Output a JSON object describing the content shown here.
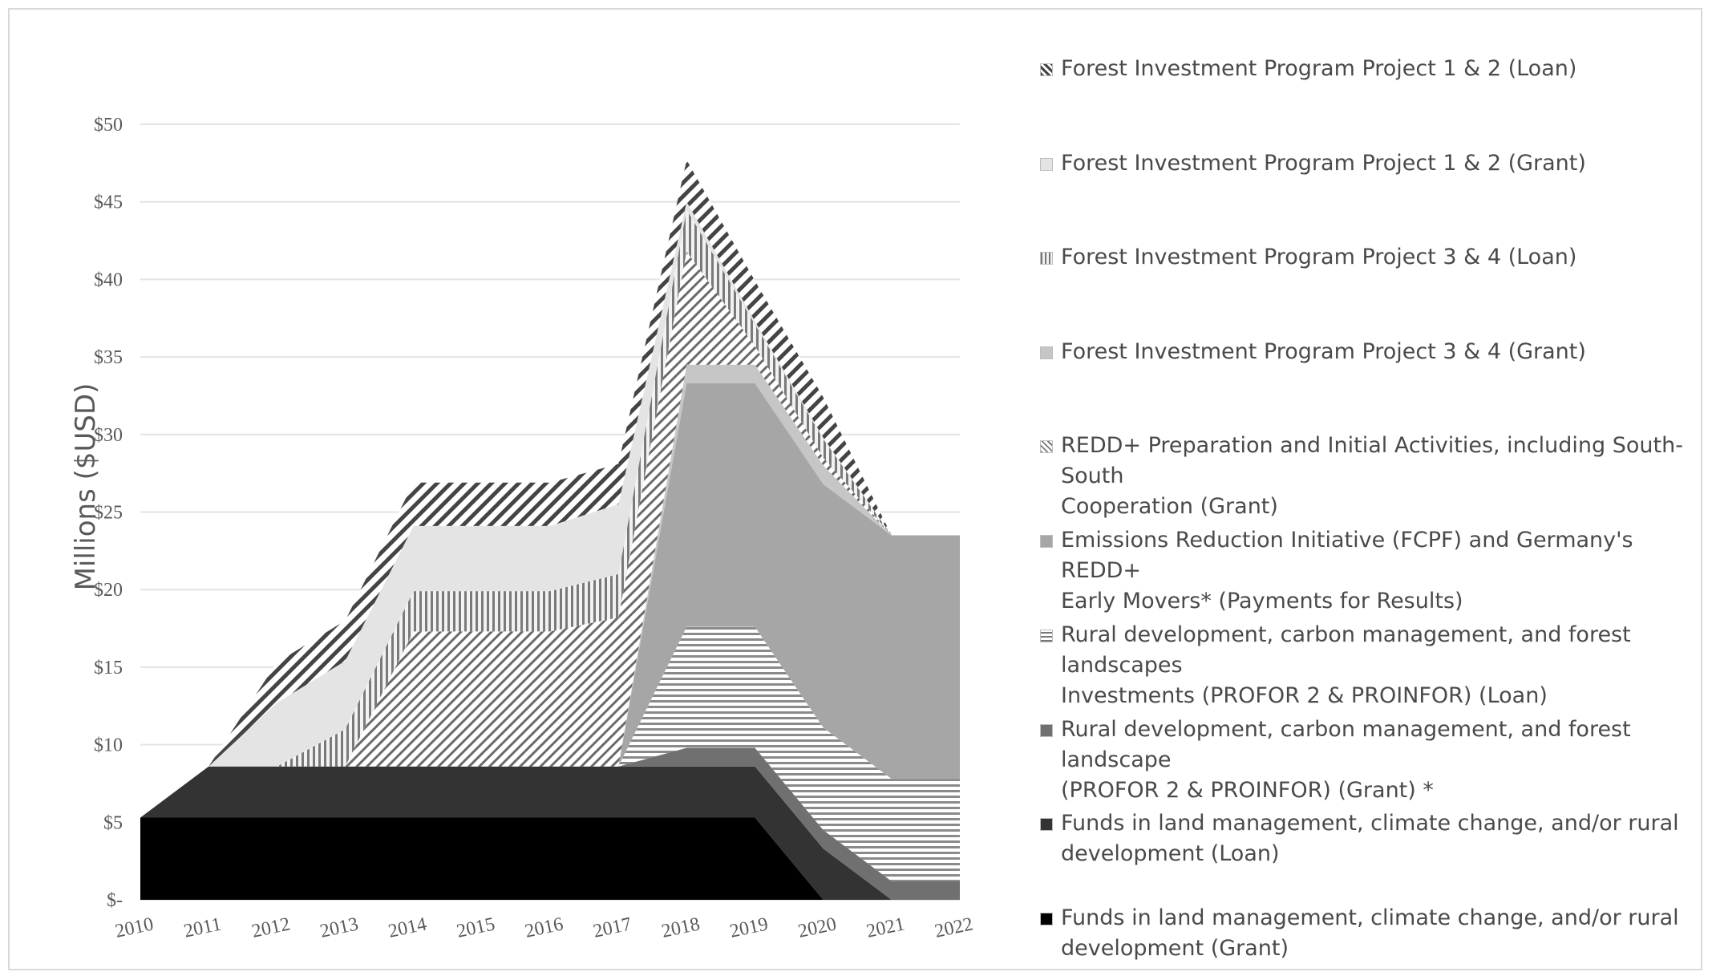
{
  "chart_data": {
    "type": "area",
    "stacked": true,
    "ylabel": "Millions ($USD)",
    "xlabel": "",
    "ylim": [
      0,
      50
    ],
    "yticks": [
      "$-",
      "$5",
      "$10",
      "$15",
      "$20",
      "$25",
      "$30",
      "$35",
      "$40",
      "$45",
      "$50"
    ],
    "ytick_values": [
      0,
      5,
      10,
      15,
      20,
      25,
      30,
      35,
      40,
      45,
      50
    ],
    "categories": [
      "2010",
      "2011",
      "2012",
      "2013",
      "2014",
      "2015",
      "2016",
      "2017",
      "2018",
      "2019",
      "2020",
      "2021",
      "2022"
    ],
    "grid": true,
    "legend_position": "right",
    "series": [
      {
        "name": "Funds in land management, climate change, and/or rural development (Grant)",
        "pattern": "solid-black",
        "color": "#000000",
        "values": [
          5.3,
          5.3,
          5.3,
          5.3,
          5.3,
          5.3,
          5.3,
          5.3,
          5.3,
          5.3,
          0,
          0,
          0
        ]
      },
      {
        "name": "Funds in land management, climate change, and/or rural development (Loan)",
        "pattern": "solid-dark",
        "color": "#3a3a3a",
        "values": [
          0,
          3.3,
          3.3,
          3.3,
          3.3,
          3.3,
          3.3,
          3.3,
          3.3,
          3.3,
          3.3,
          0,
          0
        ]
      },
      {
        "name": "Rural development, carbon management, and forest landscape (PROFOR 2 & PROINFOR) (Grant) *",
        "pattern": "solid-mid",
        "color": "#6e6e6e",
        "values": [
          0,
          0,
          0,
          0,
          0,
          0,
          0,
          0,
          1.2,
          1.2,
          1.2,
          1.2,
          1.2
        ]
      },
      {
        "name": "Rural development, carbon management, and forest landscapes Investments (PROFOR 2 & PROINFOR) (Loan)",
        "pattern": "horizontal-lines",
        "color": "#8a8a8a",
        "values": [
          0,
          0,
          0,
          0,
          0,
          0,
          0,
          0,
          7.8,
          7.8,
          6.6,
          6.6,
          6.6
        ]
      },
      {
        "name": "Emissions Reduction Initiative (FCPF) and Germany's REDD+ Early Movers* (Payments for Results)",
        "pattern": "solid-gray",
        "color": "#a6a6a6",
        "values": [
          0,
          0,
          0,
          0,
          0,
          0,
          0,
          0,
          15.7,
          15.7,
          15.7,
          15.7,
          15.7
        ]
      },
      {
        "name": "Forest Investment Program Project 3 & 4 (Grant)",
        "pattern": "solid-light",
        "color": "#c4c4c4",
        "values": [
          0,
          0,
          0,
          0,
          0,
          0,
          0,
          0,
          1.2,
          1.2,
          1.2,
          0,
          0
        ]
      },
      {
        "name": "REDD+ Preparation and Initial Activities, including South-South Cooperation (Grant)",
        "pattern": "diagonal-thin",
        "color": "#777777",
        "values": [
          0,
          0,
          0,
          0,
          8.7,
          8.7,
          8.7,
          9.6,
          7.3,
          1.2,
          0.5,
          0,
          0
        ]
      },
      {
        "name": "Forest Investment Program Project 3 & 4 (Loan)",
        "pattern": "vertical-lines",
        "color": "#909090",
        "values": [
          0,
          0,
          0,
          2.4,
          2.6,
          2.6,
          2.6,
          2.8,
          2.7,
          1.4,
          1.2,
          0,
          0
        ]
      },
      {
        "name": "Forest Investment Program Project 1 & 2 (Grant)",
        "pattern": "solid-verylight",
        "color": "#e3e3e3",
        "values": [
          0,
          0,
          4.1,
          4.4,
          4.2,
          4.2,
          4.2,
          4.5,
          0.5,
          0.2,
          0.1,
          0,
          0
        ]
      },
      {
        "name": "Forest Investment Program Project 1 & 2 (Loan)",
        "pattern": "diagonal-thick",
        "color": "#555555",
        "values": [
          0,
          0,
          2.6,
          2.6,
          2.8,
          2.8,
          2.8,
          2.6,
          2.7,
          2.6,
          2.6,
          0,
          0
        ]
      }
    ]
  },
  "legend": [
    {
      "label": "Forest Investment Program Project 1 & 2 (Loan)",
      "swatch": "diagonal-thick"
    },
    {
      "label": "Forest Investment Program Project 1 & 2 (Grant)",
      "swatch": "solid-verylight"
    },
    {
      "label": "Forest Investment Program Project 3 & 4 (Loan)",
      "swatch": "vertical-lines"
    },
    {
      "label": "Forest Investment Program Project 3 & 4 (Grant)",
      "swatch": "solid-light"
    },
    {
      "label": "REDD+ Preparation and Initial Activities, including South-South\nCooperation (Grant)",
      "swatch": "diagonal-thin"
    },
    {
      "label": "Emissions Reduction Initiative (FCPF) and Germany's REDD+\nEarly Movers* (Payments for Results)",
      "swatch": "solid-gray"
    },
    {
      "label": "Rural development, carbon management, and forest landscapes\nInvestments (PROFOR 2 & PROINFOR) (Loan)",
      "swatch": "horizontal-lines"
    },
    {
      "label": "Rural development, carbon management, and forest landscape\n(PROFOR 2 & PROINFOR) (Grant) *",
      "swatch": "solid-mid"
    },
    {
      "label": "Funds in land management, climate change, and/or rural\ndevelopment (Loan)",
      "swatch": "solid-dark"
    },
    {
      "label": "Funds in land management, climate change, and/or rural\ndevelopment (Grant)",
      "swatch": "solid-black"
    }
  ]
}
